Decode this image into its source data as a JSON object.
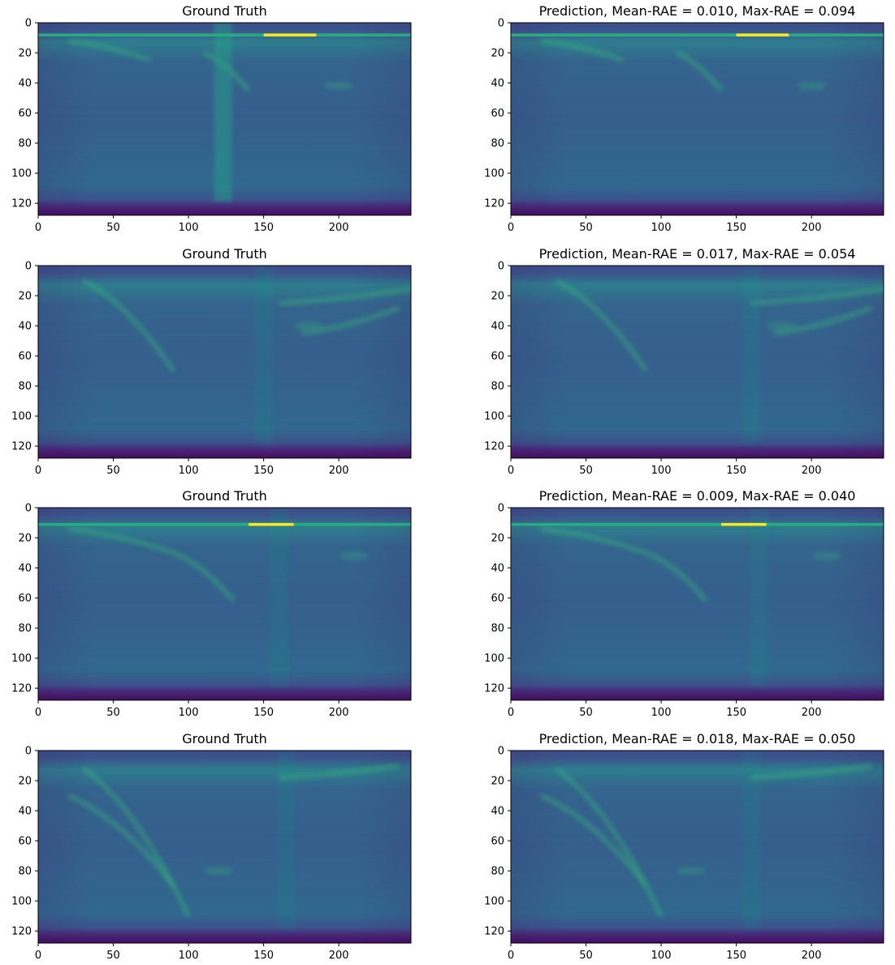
{
  "chart_data": {
    "type": "heatmap",
    "layout": "4 rows x 2 columns",
    "colormap": "viridis",
    "xlim": [
      0,
      248
    ],
    "ylim": [
      128,
      0
    ],
    "xticks": [
      0,
      50,
      100,
      150,
      200
    ],
    "yticks": [
      0,
      20,
      40,
      60,
      80,
      100,
      120
    ],
    "panels": [
      {
        "title": "Ground Truth",
        "row": 0,
        "col": 0
      },
      {
        "title": "Prediction, Mean-RAE = 0.010, Max-RAE = 0.094",
        "row": 0,
        "col": 1
      },
      {
        "title": "Ground Truth",
        "row": 1,
        "col": 0
      },
      {
        "title": "Prediction, Mean-RAE = 0.017, Max-RAE = 0.054",
        "row": 1,
        "col": 1
      },
      {
        "title": "Ground Truth",
        "row": 2,
        "col": 0
      },
      {
        "title": "Prediction, Mean-RAE = 0.009, Max-RAE = 0.040",
        "row": 2,
        "col": 1
      },
      {
        "title": "Ground Truth",
        "row": 3,
        "col": 0
      },
      {
        "title": "Prediction, Mean-RAE = 0.018, Max-RAE = 0.050",
        "row": 3,
        "col": 1
      }
    ]
  }
}
